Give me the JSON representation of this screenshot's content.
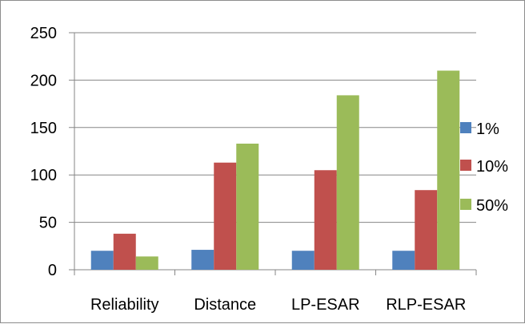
{
  "chart_data": {
    "type": "bar",
    "categories": [
      "Reliability",
      "Distance",
      "LP-ESAR",
      "RLP-ESAR"
    ],
    "series": [
      {
        "name": "1%",
        "values": [
          20,
          21,
          20,
          20
        ],
        "color": "#4f81bd"
      },
      {
        "name": "10%",
        "values": [
          38,
          113,
          105,
          84
        ],
        "color": "#c0504d"
      },
      {
        "name": "50%",
        "values": [
          14,
          133,
          184,
          210
        ],
        "color": "#9bbb59"
      }
    ],
    "title": "",
    "xlabel": "",
    "ylabel": "",
    "ylim": [
      0,
      250
    ],
    "yticks": [
      "0",
      "50",
      "100",
      "150",
      "200",
      "250"
    ],
    "grid": true,
    "legend_position": "right"
  }
}
